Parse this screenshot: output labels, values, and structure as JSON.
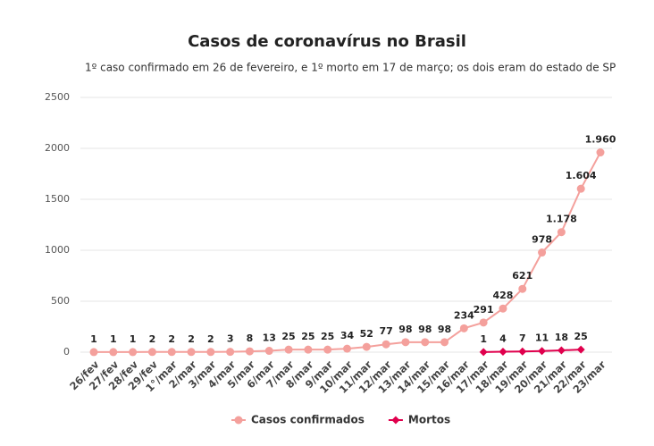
{
  "chart_data": {
    "type": "line",
    "title": "Casos de coronavírus no Brasil",
    "subtitle": "1º caso confirmado em 26 de fevereiro, e 1º morto em 17 de março; os dois eram do estado de SP",
    "categories": [
      "26/fev",
      "27/fev",
      "28/fev",
      "29/fev",
      "1°/mar",
      "2/mar",
      "3/mar",
      "4/mar",
      "5/mar",
      "6/mar",
      "7/mar",
      "8/mar",
      "9/mar",
      "10/mar",
      "11/mar",
      "12/mar",
      "13/mar",
      "14/mar",
      "15/mar",
      "16/mar",
      "17/mar",
      "18/mar",
      "19/mar",
      "20/mar",
      "21/mar",
      "22/mar",
      "23/mar"
    ],
    "series": [
      {
        "name": "Casos confirmados",
        "color": "#f4a09c",
        "marker": "circle",
        "values": [
          1,
          1,
          1,
          2,
          2,
          2,
          2,
          3,
          8,
          13,
          25,
          25,
          25,
          34,
          52,
          77,
          98,
          98,
          98,
          234,
          291,
          428,
          621,
          978,
          1178,
          1604,
          1960
        ],
        "value_labels": [
          "1",
          "1",
          "1",
          "2",
          "2",
          "2",
          "2",
          "3",
          "8",
          "13",
          "25",
          "25",
          "25",
          "34",
          "52",
          "77",
          "98",
          "98",
          "98",
          "234",
          "291",
          "428",
          "621",
          "978",
          "1.178",
          "1.604",
          "1.960"
        ]
      },
      {
        "name": "Mortos",
        "color": "#e0004d",
        "marker": "diamond",
        "values": [
          null,
          null,
          null,
          null,
          null,
          null,
          null,
          null,
          null,
          null,
          null,
          null,
          null,
          null,
          null,
          null,
          null,
          null,
          null,
          null,
          1,
          4,
          7,
          11,
          18,
          25,
          null
        ]
      }
    ],
    "ylim": [
      0,
      2500
    ],
    "yticks": [
      0,
      500,
      1000,
      1500,
      2000,
      2500
    ],
    "grid": true,
    "legend": "bottom"
  }
}
